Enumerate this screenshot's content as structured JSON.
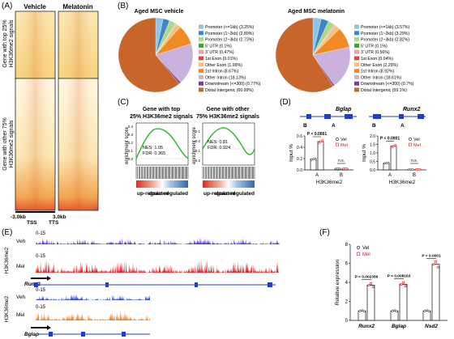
{
  "panels": {
    "A": "(A)",
    "B": "(B)",
    "C": "(C)",
    "D": "(D)",
    "E": "(E)",
    "F": "(F)"
  },
  "panelA": {
    "columns": [
      "Vehicle",
      "Melatonin"
    ],
    "row_top": [
      "Gene with top 25%",
      "H3K36me2 signals"
    ],
    "row_bottom": [
      "Gene with other 75%",
      "H3K36me2 signals"
    ],
    "axis": {
      "left": "-3.0kb",
      "right": "3.0kb",
      "tss": "TSS",
      "tts": "TTS"
    }
  },
  "panelB": {
    "pies": [
      {
        "title": "Aged MSC vehicle",
        "legend": [
          "Promoter (<=1kb) (3.25%)",
          "Promoter (1~2kb) (2.89%)",
          "Promoter (2~3kb) (2.73%)",
          "5' UTR (0.1%)",
          "3' UTR (0.47%)",
          "1st Exon (0.01%)",
          "Other Exon (1.99%)",
          "1st Intron (8.67%)",
          "Other Intron (18.13%)",
          "Downstream (<=300) (0.77%)",
          "Distal Intergenic (60.99%)"
        ],
        "values": [
          3.25,
          2.89,
          2.73,
          0.1,
          0.47,
          0.01,
          1.99,
          8.67,
          18.13,
          0.77,
          60.99
        ]
      },
      {
        "title": "Aged MSC melatonin",
        "legend": [
          "Promoter (<=1kb) (3.57%)",
          "Promoter (1~2kb) (3.29%)",
          "Promoter (2~3kb) (2.82%)",
          "5' UTR (0.1%)",
          "3' UTR (0.56%)",
          "1st Exon (0.04%)",
          "Other Exon (2.29%)",
          "1st Intron (8.92%)",
          "Other Intron (18.61%)",
          "Downstream (<=300) (0.7%)",
          "Distal Intergenic (59.1%)"
        ],
        "values": [
          3.57,
          3.29,
          2.82,
          0.1,
          0.56,
          0.04,
          2.29,
          8.92,
          18.61,
          0.7,
          59.1
        ]
      }
    ],
    "colors": [
      "#8fc3e8",
      "#3f86c4",
      "#a9d98f",
      "#4a9e3c",
      "#f1a3a3",
      "#d94a4a",
      "#f5c27a",
      "#f08a24",
      "#c9b2db",
      "#7b3f99",
      "#c7652a"
    ]
  },
  "panelC": {
    "plots": [
      {
        "title": [
          "Gene with top",
          "25% H3K36me2 signals"
        ],
        "nes": "NES: 1.05",
        "fdr": "FDR: 0.365"
      },
      {
        "title": [
          "Gene with other",
          "75% H3K36me2 signals"
        ],
        "nes": "NES: 0.81",
        "fdr": "FDR: 0.924"
      }
    ],
    "ylabel": "enrichment score",
    "ticks1": [
      "0.4",
      "0.3",
      "0.2",
      "0.1",
      "0.0"
    ],
    "ticks2": [
      "0.1",
      "0.0",
      "-0.1",
      "-0.2"
    ],
    "up": "up-regulated",
    "down": "down-regulated"
  },
  "panelD": {
    "genes": [
      "Bglap",
      "Runx2"
    ],
    "site_labels": [
      "B",
      "A"
    ],
    "ylabel": "Input %",
    "xlabel": "H3K36me2",
    "groups": [
      "A",
      "B"
    ],
    "legend": [
      "Vel",
      "Mel"
    ],
    "chart_data": [
      {
        "type": "bar",
        "gene": "Bglap",
        "categories": [
          "A",
          "B"
        ],
        "series": [
          {
            "name": "Vel",
            "values": [
              0.19,
              0.02
            ]
          },
          {
            "name": "Mel",
            "values": [
              0.5,
              0.02
            ]
          }
        ],
        "ylim": [
          0,
          0.6
        ],
        "yticks": [
          "0.0",
          "0.2",
          "0.4",
          "0.6"
        ],
        "annotations": [
          "P < 0.0001",
          "n.s."
        ]
      },
      {
        "type": "bar",
        "gene": "Runx2",
        "categories": [
          "A",
          "B"
        ],
        "series": [
          {
            "name": "Vel",
            "values": [
              0.4,
              0.02
            ]
          },
          {
            "name": "Mel",
            "values": [
              1.4,
              0.03
            ]
          }
        ],
        "ylim": [
          0,
          2.0
        ],
        "yticks": [
          "0.0",
          "0.5",
          "1.0",
          "1.5",
          "2.0"
        ],
        "annotations": [
          "P < 0.0001",
          "n.s."
        ]
      }
    ]
  },
  "panelE": {
    "group1": {
      "label": "H3K36me2",
      "tracks": [
        {
          "name": "Veh",
          "range": "0-15",
          "color": "#3a25d6"
        },
        {
          "name": "Mel",
          "range": "0-15",
          "color": "#e0141b"
        }
      ],
      "gene": "Runx2"
    },
    "group2": {
      "label": "H3K36me2",
      "tracks": [
        {
          "name": "Veh",
          "range": "0-15",
          "color": "#1e35d4"
        },
        {
          "name": "Mel",
          "range": "0-15",
          "color": "#f07a1a"
        }
      ],
      "gene": "Bglap"
    }
  },
  "panelF": {
    "ylabel": "Relative expression",
    "legend": [
      "Vel",
      "Mel"
    ],
    "chart_data": {
      "type": "bar",
      "categories": [
        "Runx2",
        "Bglap",
        "Nsd2"
      ],
      "series": [
        {
          "name": "Vel",
          "values": [
            1,
            1,
            1
          ]
        },
        {
          "name": "Mel",
          "values": [
            3.7,
            3.8,
            5.9
          ]
        }
      ],
      "ylim": [
        0,
        8
      ],
      "yticks": [
        "0",
        "2",
        "4",
        "6",
        "8"
      ],
      "annotations": [
        "P = 0.002356",
        "P = 0.008163",
        "P < 0.0001"
      ]
    }
  }
}
